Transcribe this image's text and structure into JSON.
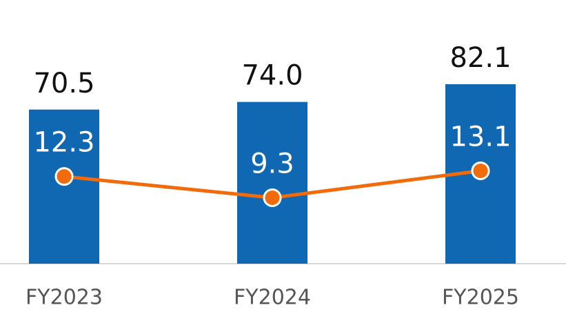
{
  "chart_data": {
    "type": "bar",
    "categories": [
      "FY2023",
      "FY2024",
      "FY2025"
    ],
    "series": [
      {
        "type": "bar",
        "color": "#1068b3",
        "values": [
          70.5,
          74.0,
          82.1
        ],
        "value_labels": [
          "70.5",
          "74.0",
          "82.1"
        ]
      },
      {
        "type": "line",
        "axis": "y2",
        "color": "#f26b0a",
        "values": [
          12.3,
          9.3,
          13.1
        ]
      }
    ],
    "ylim": [
      0,
      120
    ],
    "y2lim": [
      0,
      37
    ]
  }
}
